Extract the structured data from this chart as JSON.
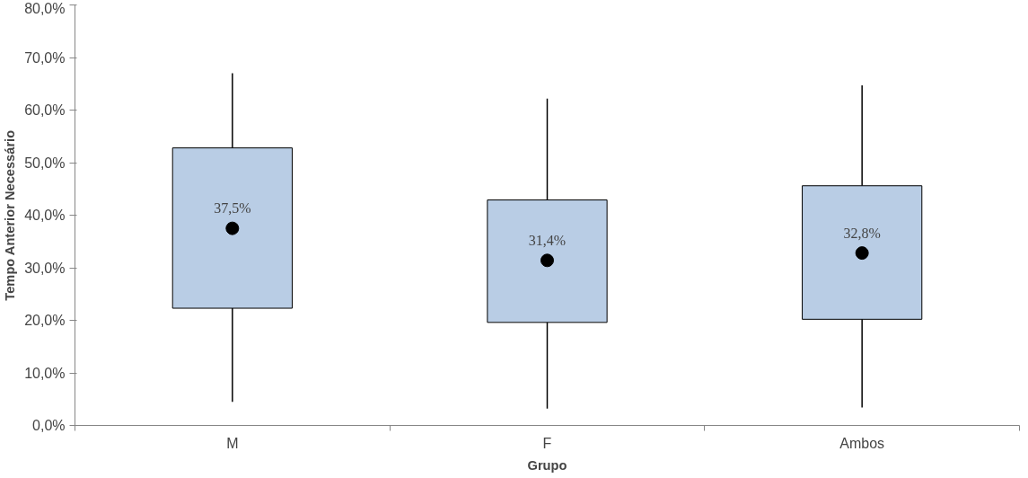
{
  "chart_data": {
    "type": "box",
    "xlabel": "Grupo",
    "ylabel": "Tempo Anterior Necessário",
    "categories": [
      "M",
      "F",
      "Ambos"
    ],
    "boxes": [
      {
        "low": 4.5,
        "q1": 22.3,
        "median": 37.5,
        "q3": 52.8,
        "high": 67.0
      },
      {
        "low": 3.2,
        "q1": 19.6,
        "median": 31.4,
        "q3": 42.9,
        "high": 62.2
      },
      {
        "low": 3.4,
        "q1": 20.2,
        "median": 32.8,
        "q3": 45.6,
        "high": 64.7
      }
    ],
    "value_labels": [
      "37,5%",
      "31,4%",
      "32,8%"
    ],
    "color": "#b9cde5",
    "ylim": [
      0,
      80
    ],
    "yticks": [
      {
        "value": 0,
        "label": "0,0%"
      },
      {
        "value": 10,
        "label": "10,0%"
      },
      {
        "value": 20,
        "label": "20,0%"
      },
      {
        "value": 30,
        "label": "30,0%"
      },
      {
        "value": 40,
        "label": "40,0%"
      },
      {
        "value": 50,
        "label": "50,0%"
      },
      {
        "value": 60,
        "label": "60,0%"
      },
      {
        "value": 70,
        "label": "70,0%"
      },
      {
        "value": 80,
        "label": "80,0%"
      }
    ],
    "grid": false,
    "marker": "circle"
  }
}
